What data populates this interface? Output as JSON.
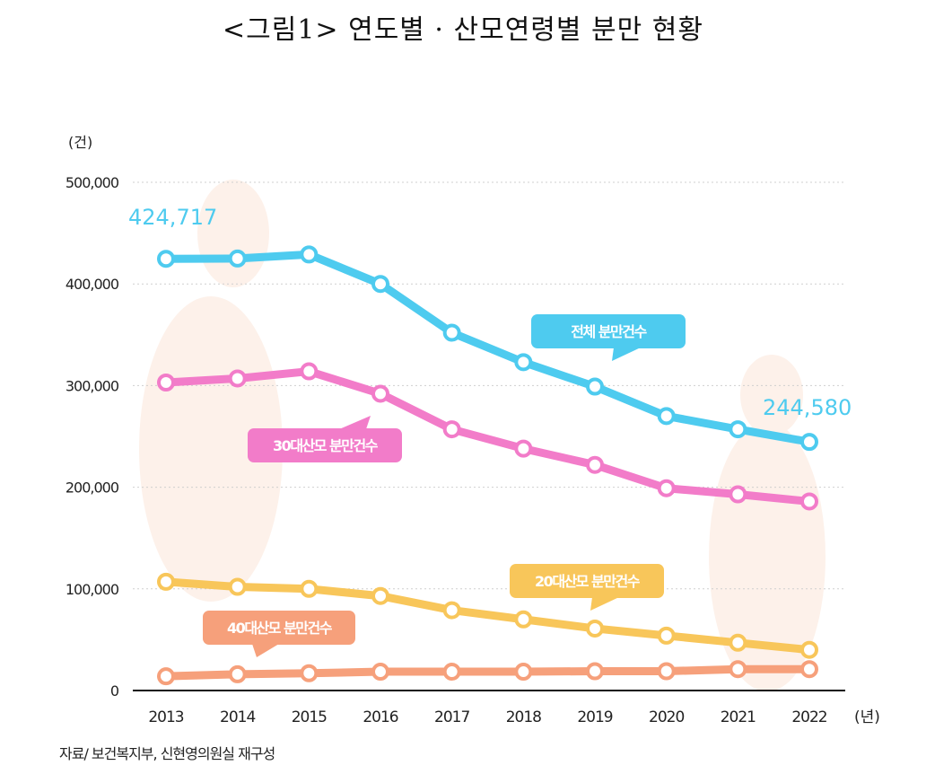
{
  "title": "<그림1> 연도별 · 산모연령별 분만 현황",
  "source": "자료/ 보건복지부, 신현영의원실 재구성",
  "chart_data": {
    "type": "line",
    "title": "<그림1> 연도별 · 산모연령별 분만 현황",
    "ylabel": "(건)",
    "xlabel": "(년)",
    "ylim": [
      0,
      500000
    ],
    "yticks": [
      0,
      100000,
      200000,
      300000,
      400000,
      500000
    ],
    "ytick_labels": [
      "0",
      "100,000",
      "200,000",
      "300,000",
      "400,000",
      "500,000"
    ],
    "grid": true,
    "x": [
      "2013",
      "2014",
      "2015",
      "2016",
      "2017",
      "2018",
      "2019",
      "2020",
      "2021",
      "2022"
    ],
    "series": [
      {
        "name": "전체 분만건수",
        "color": "#4ecbef",
        "values": [
          424717,
          425000,
          429000,
          400000,
          352000,
          323000,
          299000,
          270000,
          257000,
          244580
        ],
        "annotations": {
          "first": "424,717",
          "last": "244,580"
        }
      },
      {
        "name": "30대산모 분만건수",
        "color": "#f27cc9",
        "values": [
          303000,
          307000,
          314000,
          292000,
          257000,
          238000,
          222000,
          199000,
          193000,
          186000
        ]
      },
      {
        "name": "20대산모 분만건수",
        "color": "#f8c65a",
        "values": [
          107000,
          102000,
          100000,
          93000,
          79000,
          70000,
          61000,
          54000,
          47000,
          40000
        ]
      },
      {
        "name": "40대산모 분만건수",
        "color": "#f6a07b",
        "values": [
          14000,
          16000,
          17000,
          18500,
          18500,
          18500,
          19000,
          19000,
          21000,
          21000
        ]
      }
    ]
  }
}
